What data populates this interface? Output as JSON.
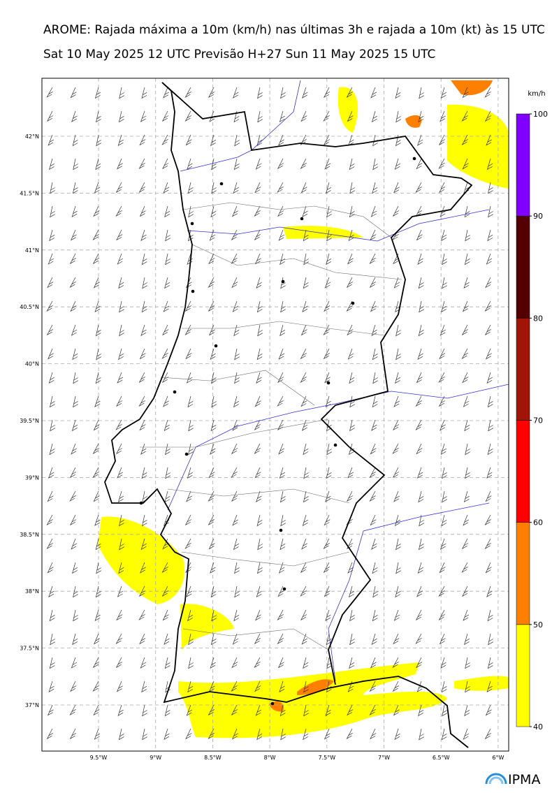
{
  "title": "AROME: Rajada máxima a 10m (km/h) nas últimas 3h e rajada a 10m (kt) às 15 UTC",
  "subtitle": "Sat 10 May 2025 12 UTC Previsão H+27 Sun 11 May 2025 15 UTC",
  "map": {
    "lat_labels": [
      "42°N",
      "41.5°N",
      "41°N",
      "40.5°N",
      "40°N",
      "39.5°N",
      "39°N",
      "38.5°N",
      "38°N",
      "37.5°N",
      "37°N"
    ],
    "lon_labels": [
      "9.5°W",
      "9°W",
      "8.5°W",
      "8°W",
      "7.5°W",
      "7°W",
      "6.5°W",
      "6°W"
    ]
  },
  "colorbar": {
    "unit": "km/h",
    "ticks": [
      40,
      50,
      60,
      70,
      80,
      90,
      100
    ],
    "colors": [
      "#ffff00",
      "#ff8000",
      "#ff0000",
      "#a11408",
      "#550000",
      "#8000ff"
    ]
  },
  "logo": "IPMA"
}
